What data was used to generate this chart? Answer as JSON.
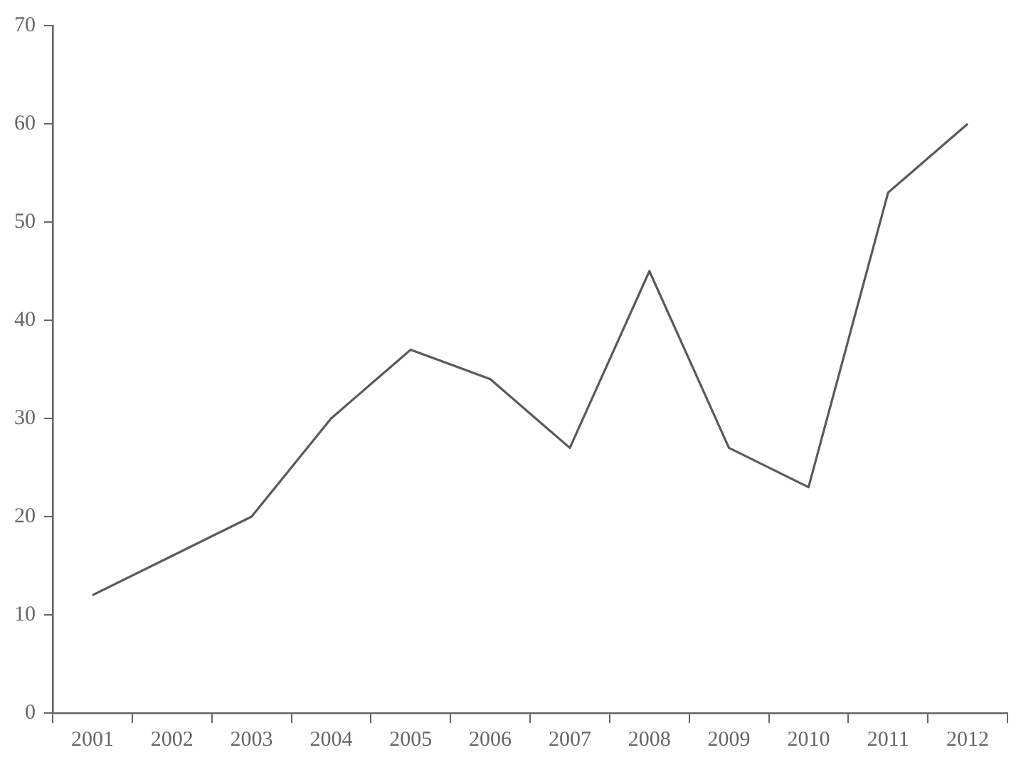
{
  "chart_data": {
    "type": "line",
    "categories": [
      "2001",
      "2002",
      "2003",
      "2004",
      "2005",
      "2006",
      "2007",
      "2008",
      "2009",
      "2010",
      "2011",
      "2012"
    ],
    "series": [
      {
        "color": "#5a5a5a",
        "values": [
          12,
          16,
          20,
          30,
          37,
          34,
          27,
          45,
          27,
          23,
          53,
          60
        ]
      }
    ],
    "ylim": [
      0,
      70
    ],
    "yticks": [
      0,
      10,
      20,
      30,
      40,
      50,
      60,
      70
    ],
    "grid": false,
    "legend": false,
    "marker": "none",
    "line_style": "solid"
  }
}
